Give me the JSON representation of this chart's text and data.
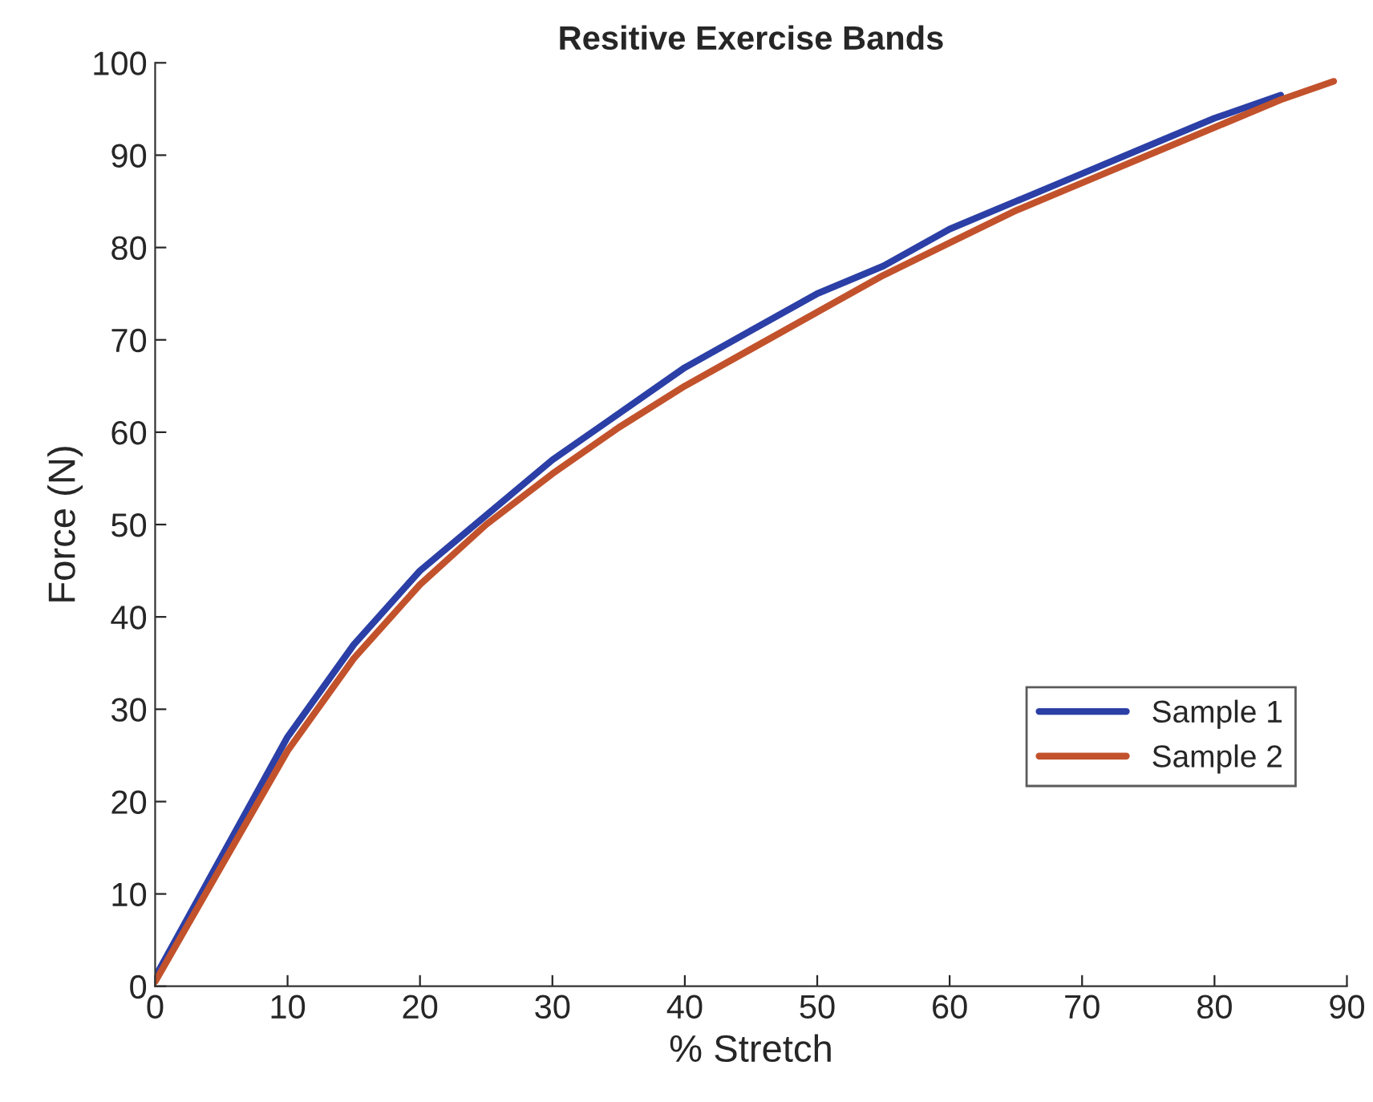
{
  "chart_data": {
    "type": "line",
    "title": "Resitive Exercise Bands",
    "xlabel": "% Stretch",
    "ylabel": "Force (N)",
    "xlim": [
      0,
      90
    ],
    "xticks": [
      0,
      10,
      20,
      30,
      40,
      50,
      60,
      70,
      80,
      90
    ],
    "ylim": [
      0,
      100
    ],
    "yticks": [
      0,
      10,
      20,
      30,
      40,
      50,
      60,
      70,
      80,
      90,
      100
    ],
    "grid": false,
    "legend": "bottom right",
    "marker": "none",
    "line_style": "solid",
    "series": [
      {
        "name": "Sample 1",
        "color": "#2b3fa6",
        "x": [
          0,
          5,
          10,
          15,
          20,
          25,
          30,
          35,
          40,
          45,
          50,
          55,
          60,
          65,
          70,
          75,
          80,
          85
        ],
        "values": [
          1,
          14,
          27,
          37,
          45,
          51,
          57,
          62,
          67,
          71,
          75,
          78,
          82,
          85,
          88,
          91,
          94,
          96.5
        ]
      },
      {
        "name": "Sample 2",
        "color": "#c2522c",
        "x": [
          0,
          5,
          10,
          15,
          20,
          25,
          30,
          35,
          40,
          45,
          50,
          55,
          60,
          65,
          70,
          75,
          80,
          85,
          89
        ],
        "values": [
          0.5,
          13,
          25.5,
          35.5,
          43.5,
          50,
          55.5,
          60.5,
          65,
          69,
          73,
          77,
          80.5,
          84,
          87,
          90,
          93,
          96,
          98
        ]
      }
    ]
  }
}
